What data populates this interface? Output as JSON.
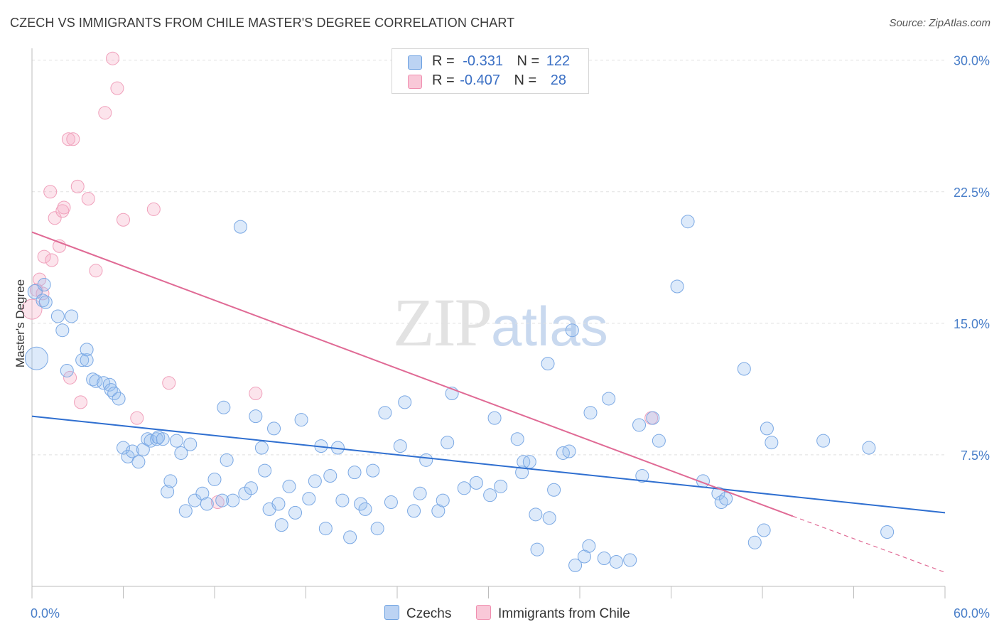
{
  "title": "CZECH VS IMMIGRANTS FROM CHILE MASTER'S DEGREE CORRELATION CHART",
  "source": "Source: ZipAtlas.com",
  "watermark": {
    "zip": "ZIP",
    "atlas": "atlas"
  },
  "legend": {
    "rows": [
      {
        "r_label": "R =",
        "r_value": "-0.331",
        "n_label": "N =",
        "n_value": "122"
      },
      {
        "r_label": "R =",
        "r_value": "-0.407",
        "n_label": "N =",
        "n_value": "28"
      }
    ]
  },
  "bottom_legend": {
    "czechs": "Czechs",
    "chile": "Immigrants from Chile"
  },
  "chart_data": {
    "type": "scatter",
    "title": "CZECH VS IMMIGRANTS FROM CHILE MASTER'S DEGREE CORRELATION CHART",
    "xlabel": "",
    "ylabel": "Master's Degree",
    "xlim": [
      0,
      60
    ],
    "ylim": [
      0,
      31
    ],
    "y_ticks": [
      7.5,
      15.0,
      22.5,
      30.0
    ],
    "y_tick_labels": [
      "7.5%",
      "15.0%",
      "22.5%",
      "30.0%"
    ],
    "x_tick_labels": [
      "0.0%",
      "60.0%"
    ],
    "grid": true,
    "colors": {
      "czechs": "#6a9fe0",
      "czechs_line": "#2f6fd0",
      "chile": "#f08fb0",
      "chile_line": "#e06a95"
    },
    "series": [
      {
        "name": "Czechs",
        "r": -0.331,
        "n": 122,
        "trend": {
          "x0": 0,
          "y0": 9.7,
          "x1": 60,
          "y1": 4.2
        },
        "points": [
          [
            0.2,
            16.8,
            10
          ],
          [
            0.3,
            13.0,
            16
          ],
          [
            0.7,
            16.3,
            9
          ],
          [
            0.9,
            16.2,
            9
          ],
          [
            0.8,
            17.2,
            9
          ],
          [
            1.7,
            15.4,
            9
          ],
          [
            2.0,
            14.6,
            9
          ],
          [
            2.6,
            15.4,
            9
          ],
          [
            2.3,
            12.3,
            9
          ],
          [
            3.3,
            12.9,
            9
          ],
          [
            3.6,
            12.9,
            9
          ],
          [
            3.6,
            13.5,
            9
          ],
          [
            4.0,
            11.8,
            9
          ],
          [
            4.2,
            11.7,
            9
          ],
          [
            4.7,
            11.6,
            9
          ],
          [
            5.1,
            11.5,
            9
          ],
          [
            5.2,
            11.2,
            9
          ],
          [
            5.4,
            11.0,
            9
          ],
          [
            5.7,
            10.7,
            9
          ],
          [
            6.0,
            7.9,
            9
          ],
          [
            6.3,
            7.4,
            9
          ],
          [
            6.6,
            7.7,
            9
          ],
          [
            7.0,
            7.1,
            9
          ],
          [
            7.3,
            7.8,
            9
          ],
          [
            7.6,
            8.4,
            9
          ],
          [
            7.8,
            8.3,
            9
          ],
          [
            8.2,
            8.4,
            9
          ],
          [
            8.3,
            8.5,
            9
          ],
          [
            8.6,
            8.4,
            9
          ],
          [
            8.9,
            5.4,
            9
          ],
          [
            9.1,
            6.0,
            9
          ],
          [
            9.5,
            8.3,
            9
          ],
          [
            9.8,
            7.6,
            9
          ],
          [
            10.1,
            4.3,
            9
          ],
          [
            10.4,
            8.1,
            9
          ],
          [
            10.7,
            4.9,
            9
          ],
          [
            11.2,
            5.3,
            9
          ],
          [
            11.5,
            4.7,
            9
          ],
          [
            12.0,
            6.1,
            9
          ],
          [
            12.5,
            4.9,
            9
          ],
          [
            12.6,
            10.2,
            9
          ],
          [
            12.8,
            7.2,
            9
          ],
          [
            13.2,
            4.9,
            9
          ],
          [
            13.7,
            20.5,
            9
          ],
          [
            14.0,
            5.3,
            9
          ],
          [
            14.4,
            5.6,
            9
          ],
          [
            14.7,
            9.7,
            9
          ],
          [
            15.1,
            7.9,
            9
          ],
          [
            15.3,
            6.6,
            9
          ],
          [
            15.6,
            4.4,
            9
          ],
          [
            15.9,
            9.0,
            9
          ],
          [
            16.2,
            4.7,
            9
          ],
          [
            16.4,
            3.5,
            9
          ],
          [
            16.9,
            5.7,
            9
          ],
          [
            17.3,
            4.2,
            9
          ],
          [
            17.7,
            9.5,
            9
          ],
          [
            18.2,
            5.0,
            9
          ],
          [
            18.6,
            6.0,
            9
          ],
          [
            19.0,
            8.0,
            9
          ],
          [
            19.3,
            3.3,
            9
          ],
          [
            19.6,
            6.3,
            9
          ],
          [
            20.1,
            7.9,
            9
          ],
          [
            20.4,
            4.9,
            9
          ],
          [
            20.9,
            2.8,
            9
          ],
          [
            21.2,
            6.5,
            9
          ],
          [
            21.6,
            4.7,
            9
          ],
          [
            21.9,
            4.4,
            9
          ],
          [
            22.4,
            6.6,
            9
          ],
          [
            22.7,
            3.3,
            9
          ],
          [
            23.2,
            9.9,
            9
          ],
          [
            23.6,
            4.8,
            9
          ],
          [
            24.2,
            8.0,
            9
          ],
          [
            24.5,
            10.5,
            9
          ],
          [
            25.1,
            4.3,
            9
          ],
          [
            25.5,
            5.3,
            9
          ],
          [
            25.9,
            7.2,
            9
          ],
          [
            26.7,
            4.3,
            9
          ],
          [
            27.0,
            4.9,
            9
          ],
          [
            27.3,
            8.2,
            9
          ],
          [
            27.6,
            11.0,
            9
          ],
          [
            28.4,
            5.6,
            9
          ],
          [
            29.2,
            5.9,
            9
          ],
          [
            30.1,
            5.2,
            9
          ],
          [
            30.4,
            9.6,
            9
          ],
          [
            30.8,
            5.7,
            9
          ],
          [
            31.9,
            8.4,
            9
          ],
          [
            32.2,
            6.5,
            9
          ],
          [
            32.3,
            7.1,
            9
          ],
          [
            32.7,
            7.1,
            9
          ],
          [
            33.1,
            4.1,
            9
          ],
          [
            33.2,
            2.1,
            9
          ],
          [
            33.9,
            12.7,
            9
          ],
          [
            34.0,
            3.9,
            9
          ],
          [
            34.3,
            5.5,
            9
          ],
          [
            34.9,
            7.6,
            9
          ],
          [
            35.3,
            7.7,
            9
          ],
          [
            35.5,
            14.6,
            9
          ],
          [
            35.7,
            1.2,
            9
          ],
          [
            36.3,
            1.7,
            9
          ],
          [
            36.6,
            2.3,
            9
          ],
          [
            36.7,
            9.9,
            9
          ],
          [
            37.6,
            1.6,
            9
          ],
          [
            37.9,
            10.7,
            9
          ],
          [
            38.4,
            1.4,
            9
          ],
          [
            39.3,
            1.5,
            9
          ],
          [
            39.9,
            9.2,
            9
          ],
          [
            40.1,
            6.3,
            9
          ],
          [
            40.8,
            9.6,
            9
          ],
          [
            41.2,
            8.3,
            9
          ],
          [
            42.4,
            17.1,
            9
          ],
          [
            43.1,
            20.8,
            9
          ],
          [
            44.1,
            6.0,
            9
          ],
          [
            45.1,
            5.3,
            9
          ],
          [
            45.3,
            4.8,
            9
          ],
          [
            45.6,
            5.0,
            9
          ],
          [
            46.8,
            12.4,
            9
          ],
          [
            47.5,
            2.5,
            9
          ],
          [
            48.1,
            3.2,
            9
          ],
          [
            48.3,
            9.0,
            9
          ],
          [
            48.6,
            8.2,
            9
          ],
          [
            52.0,
            8.3,
            9
          ],
          [
            55.0,
            7.9,
            9
          ],
          [
            56.2,
            3.1,
            9
          ]
        ]
      },
      {
        "name": "Immigrants from Chile",
        "r": -0.407,
        "n": 28,
        "trend": {
          "x0": 0,
          "y0": 20.2,
          "x1": 50,
          "y1": 4.0,
          "dashed_to_x": 60,
          "dashed_to_y": 0.8
        },
        "points": [
          [
            0.0,
            15.8,
            14
          ],
          [
            0.3,
            16.9,
            9
          ],
          [
            0.5,
            17.5,
            9
          ],
          [
            0.7,
            16.7,
            9
          ],
          [
            0.8,
            18.8,
            9
          ],
          [
            1.2,
            22.5,
            9
          ],
          [
            1.3,
            18.6,
            9
          ],
          [
            1.5,
            21.0,
            9
          ],
          [
            1.8,
            19.4,
            9
          ],
          [
            2.0,
            21.4,
            9
          ],
          [
            2.1,
            21.6,
            9
          ],
          [
            2.4,
            25.5,
            9
          ],
          [
            2.5,
            11.9,
            9
          ],
          [
            2.7,
            25.5,
            9
          ],
          [
            3.0,
            22.8,
            9
          ],
          [
            3.2,
            10.5,
            9
          ],
          [
            3.7,
            22.1,
            9
          ],
          [
            4.2,
            18.0,
            9
          ],
          [
            4.8,
            27.0,
            9
          ],
          [
            5.3,
            30.1,
            9
          ],
          [
            5.6,
            28.4,
            9
          ],
          [
            6.0,
            20.9,
            9
          ],
          [
            6.9,
            9.6,
            9
          ],
          [
            8.0,
            21.5,
            9
          ],
          [
            9.0,
            11.6,
            9
          ],
          [
            12.2,
            4.8,
            9
          ],
          [
            14.7,
            11.0,
            9
          ],
          [
            40.7,
            9.6,
            9
          ]
        ]
      }
    ]
  }
}
